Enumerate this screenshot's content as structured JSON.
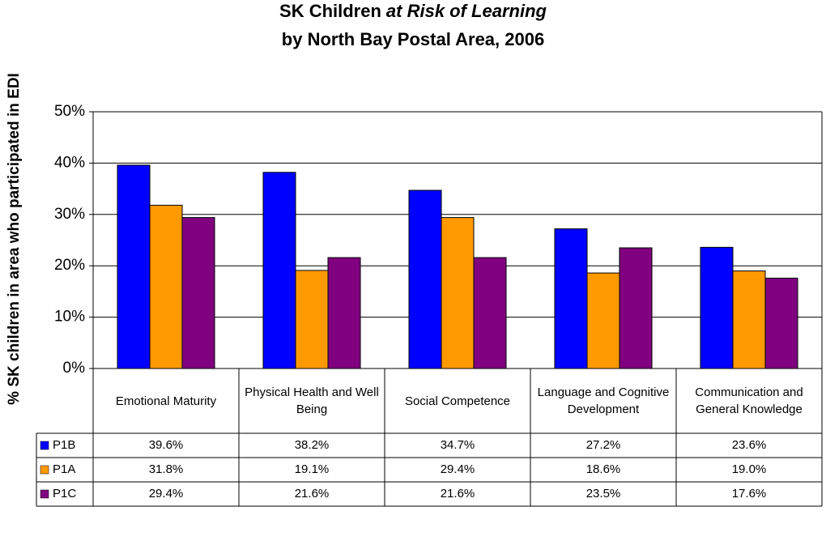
{
  "chart_data": {
    "type": "bar",
    "title": {
      "plain": "SK Children",
      "italic": "at Risk of Learning"
    },
    "subtitle": "by North Bay Postal Area, 2006",
    "y_label": "% SK children in area who participated in EDI",
    "categories": [
      "Emotional Maturity",
      "Physical Health and Well Being",
      "Social Competence",
      "Language and Cognitive Development",
      "Communication and General Knowledge"
    ],
    "series": [
      {
        "name": "P1B",
        "color": "#0000ff",
        "values": [
          39.6,
          38.2,
          34.7,
          27.2,
          23.6
        ],
        "value_labels": [
          "39.6%",
          "38.2%",
          "34.7%",
          "27.2%",
          "23.6%"
        ]
      },
      {
        "name": "P1A",
        "color": "#ff9900",
        "values": [
          31.8,
          19.1,
          29.4,
          18.6,
          19.0
        ],
        "value_labels": [
          "31.8%",
          "19.1%",
          "29.4%",
          "18.6%",
          "19.0%"
        ]
      },
      {
        "name": "P1C",
        "color": "#800080",
        "values": [
          29.4,
          21.6,
          21.6,
          23.5,
          17.6
        ],
        "value_labels": [
          "29.4%",
          "21.6%",
          "21.6%",
          "23.5%",
          "17.6%"
        ]
      }
    ],
    "ylim": [
      0,
      50
    ],
    "yticks": [
      {
        "value": 0,
        "label": "0%"
      },
      {
        "value": 10,
        "label": "10%"
      },
      {
        "value": 20,
        "label": "20%"
      },
      {
        "value": 30,
        "label": "30%"
      },
      {
        "value": 40,
        "label": "40%"
      },
      {
        "value": 50,
        "label": "50%"
      }
    ],
    "grid": true
  }
}
